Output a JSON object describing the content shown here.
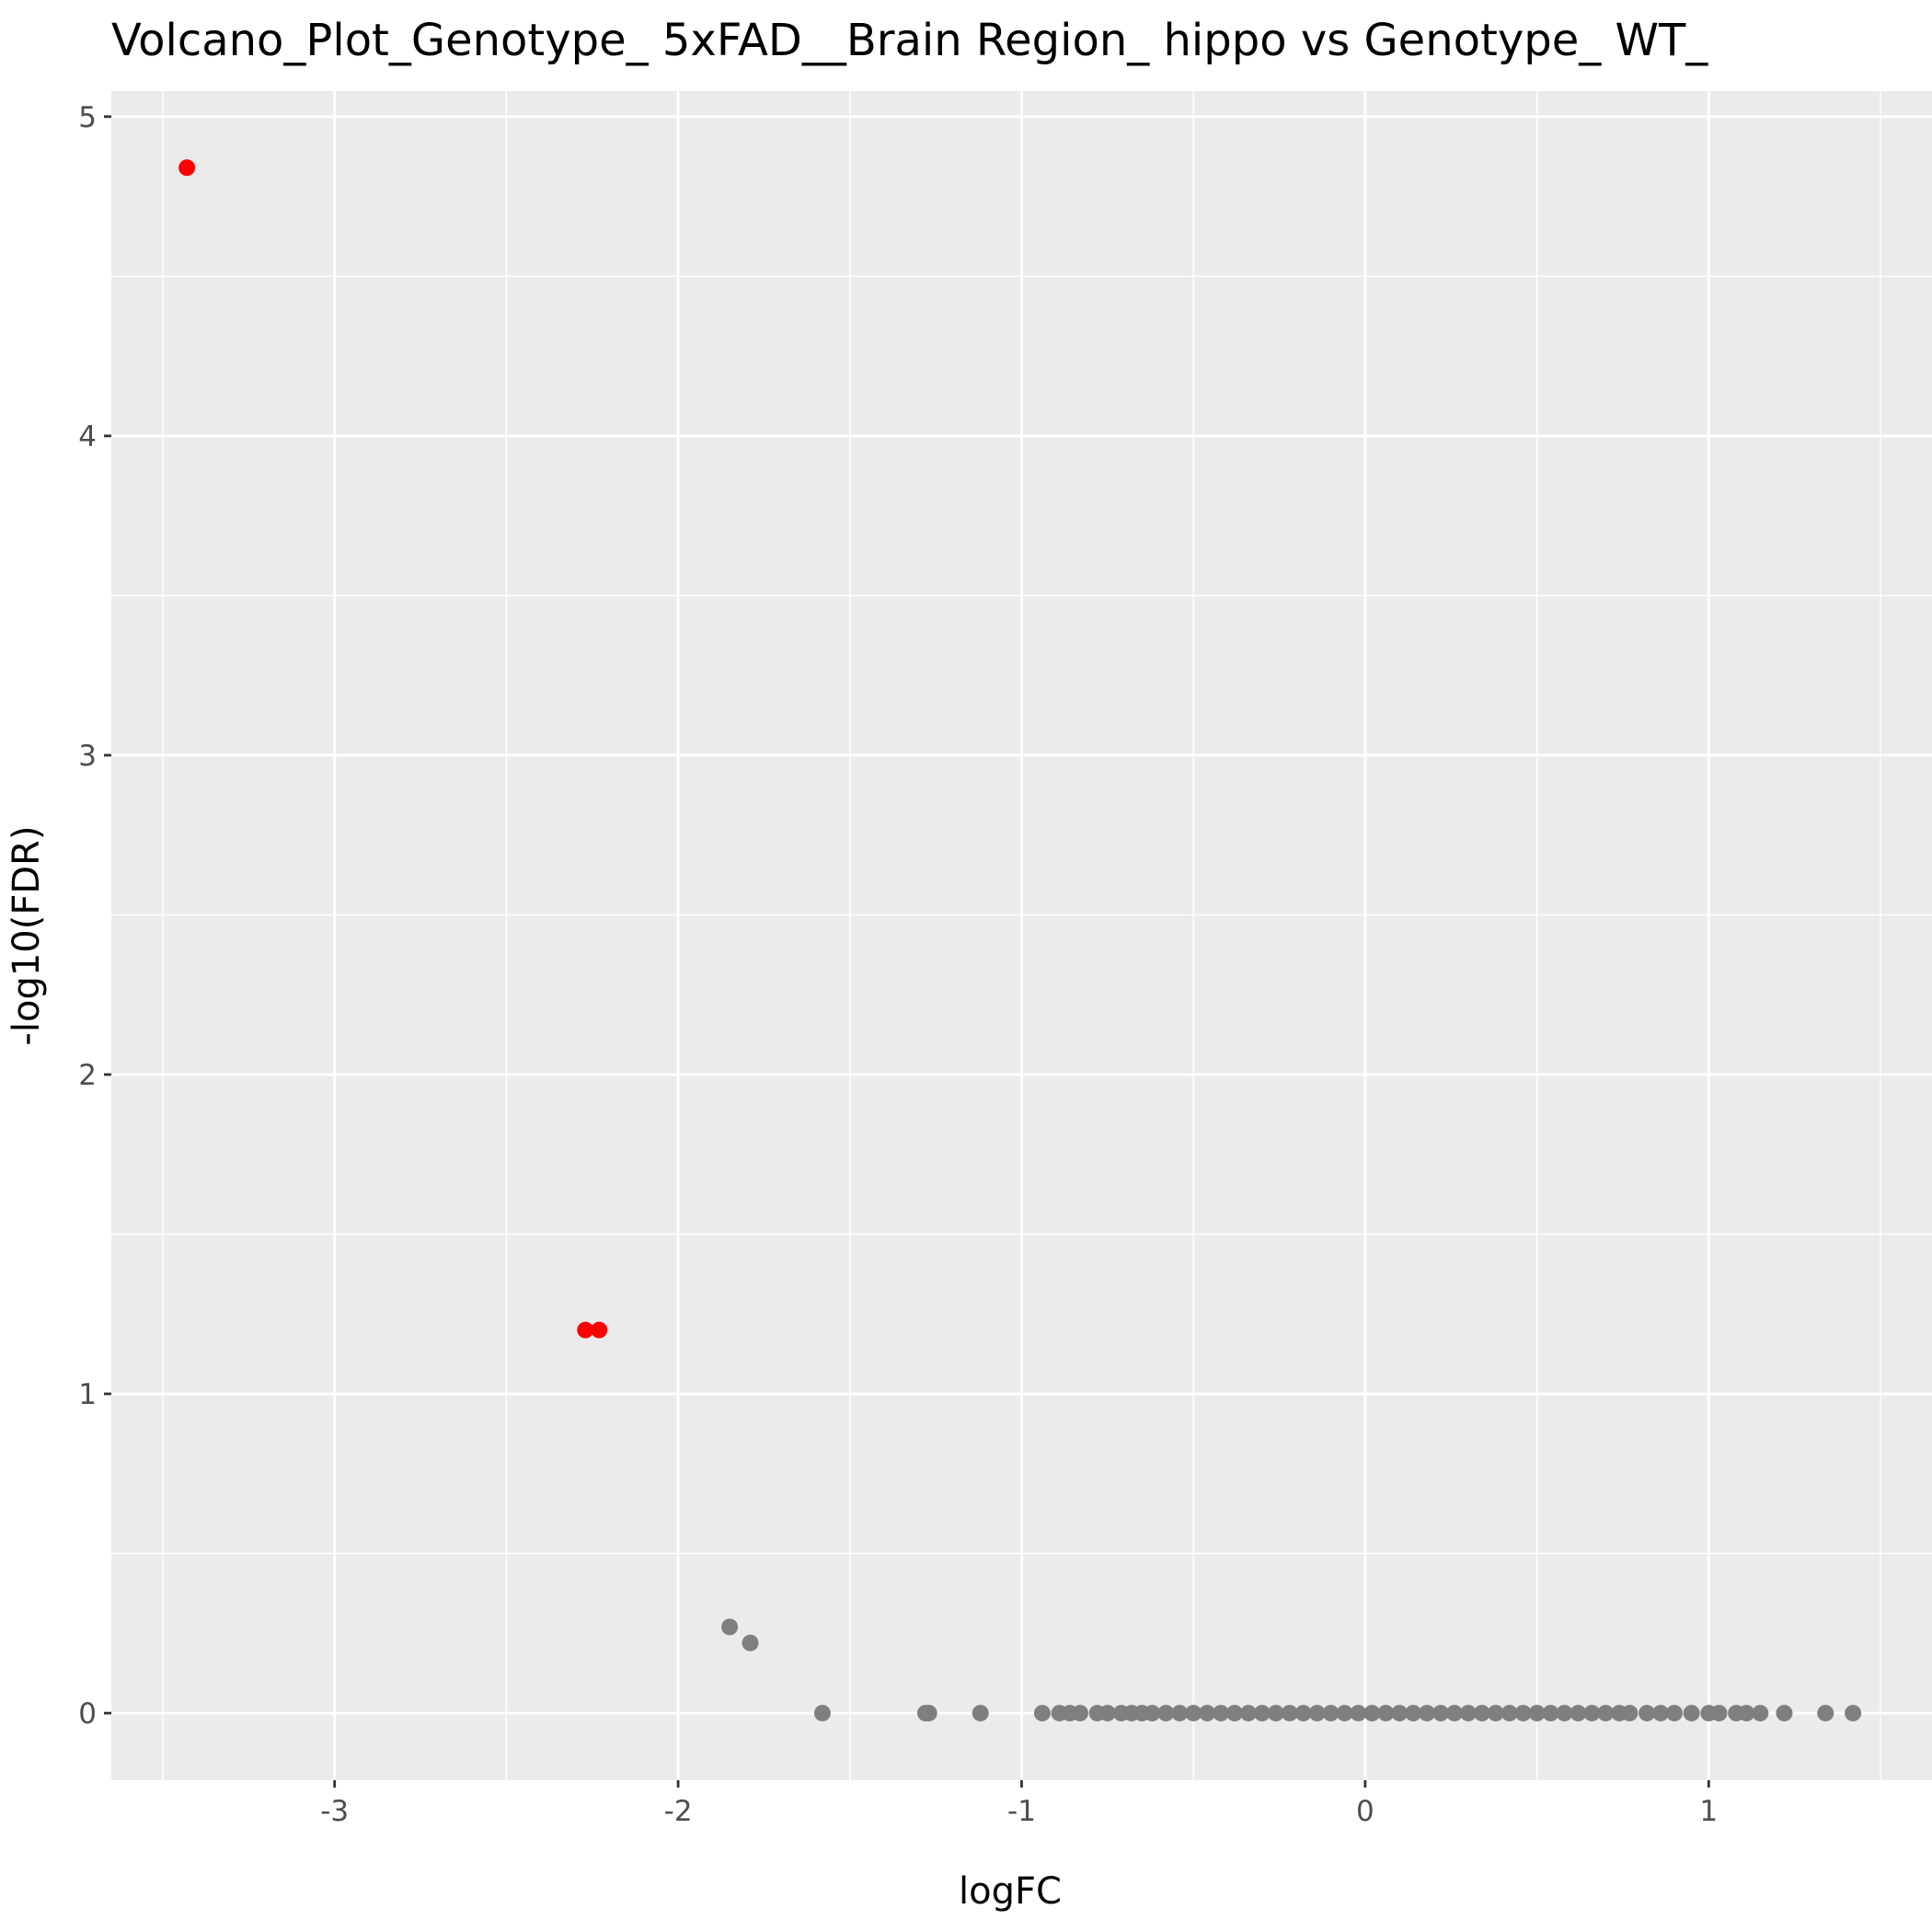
{
  "chart_data": {
    "type": "scatter",
    "title": "Volcano_Plot_Genotype_ 5xFAD__Brain Region_ hippo vs Genotype_ WT_",
    "xlabel": "logFC",
    "ylabel": "-log10(FDR)",
    "xlim": [
      -3.65,
      1.65
    ],
    "ylim": [
      -0.21,
      5.08
    ],
    "x_ticks": [
      -3,
      -2,
      -1,
      0,
      1
    ],
    "x_tick_labels": [
      "-3",
      "-2",
      "-1",
      "0",
      "1"
    ],
    "y_ticks": [
      0,
      1,
      2,
      3,
      4,
      5
    ],
    "y_tick_labels": [
      "0",
      "1",
      "2",
      "3",
      "4",
      "5"
    ],
    "grid": true,
    "legend": "none",
    "series": [
      {
        "color": "#ff0000",
        "points": [
          {
            "x": -3.43,
            "y": 4.84
          },
          {
            "x": -2.27,
            "y": 1.2
          },
          {
            "x": -2.23,
            "y": 1.2
          }
        ]
      },
      {
        "color": "#7f7f7f",
        "points": [
          {
            "x": -1.85,
            "y": 0.27
          },
          {
            "x": -1.79,
            "y": 0.22
          },
          {
            "x": -1.58,
            "y": 0
          },
          {
            "x": -1.28,
            "y": 0
          },
          {
            "x": -1.27,
            "y": 0
          },
          {
            "x": -1.12,
            "y": 0
          },
          {
            "x": -0.94,
            "y": 0
          },
          {
            "x": -0.89,
            "y": 0
          },
          {
            "x": -0.86,
            "y": 0
          },
          {
            "x": -0.83,
            "y": 0
          },
          {
            "x": -0.78,
            "y": 0
          },
          {
            "x": -0.75,
            "y": 0
          },
          {
            "x": -0.71,
            "y": 0
          },
          {
            "x": -0.68,
            "y": 0
          },
          {
            "x": -0.65,
            "y": 0
          },
          {
            "x": -0.62,
            "y": 0
          },
          {
            "x": -0.58,
            "y": 0
          },
          {
            "x": -0.54,
            "y": 0
          },
          {
            "x": -0.5,
            "y": 0
          },
          {
            "x": -0.46,
            "y": 0
          },
          {
            "x": -0.42,
            "y": 0
          },
          {
            "x": -0.38,
            "y": 0
          },
          {
            "x": -0.34,
            "y": 0
          },
          {
            "x": -0.3,
            "y": 0
          },
          {
            "x": -0.26,
            "y": 0
          },
          {
            "x": -0.22,
            "y": 0
          },
          {
            "x": -0.18,
            "y": 0
          },
          {
            "x": -0.14,
            "y": 0
          },
          {
            "x": -0.1,
            "y": 0
          },
          {
            "x": -0.06,
            "y": 0
          },
          {
            "x": -0.02,
            "y": 0
          },
          {
            "x": 0.02,
            "y": 0
          },
          {
            "x": 0.06,
            "y": 0
          },
          {
            "x": 0.1,
            "y": 0
          },
          {
            "x": 0.14,
            "y": 0
          },
          {
            "x": 0.18,
            "y": 0
          },
          {
            "x": 0.22,
            "y": 0
          },
          {
            "x": 0.26,
            "y": 0
          },
          {
            "x": 0.3,
            "y": 0
          },
          {
            "x": 0.34,
            "y": 0
          },
          {
            "x": 0.38,
            "y": 0
          },
          {
            "x": 0.42,
            "y": 0
          },
          {
            "x": 0.46,
            "y": 0
          },
          {
            "x": 0.5,
            "y": 0
          },
          {
            "x": 0.54,
            "y": 0
          },
          {
            "x": 0.58,
            "y": 0
          },
          {
            "x": 0.62,
            "y": 0
          },
          {
            "x": 0.66,
            "y": 0
          },
          {
            "x": 0.7,
            "y": 0
          },
          {
            "x": 0.74,
            "y": 0
          },
          {
            "x": 0.77,
            "y": 0
          },
          {
            "x": 0.82,
            "y": 0
          },
          {
            "x": 0.86,
            "y": 0
          },
          {
            "x": 0.9,
            "y": 0
          },
          {
            "x": 0.95,
            "y": 0
          },
          {
            "x": 1.0,
            "y": 0
          },
          {
            "x": 1.03,
            "y": 0
          },
          {
            "x": 1.08,
            "y": 0
          },
          {
            "x": 1.11,
            "y": 0
          },
          {
            "x": 1.15,
            "y": 0
          },
          {
            "x": 1.22,
            "y": 0
          },
          {
            "x": 1.34,
            "y": 0
          },
          {
            "x": 1.42,
            "y": 0
          }
        ]
      }
    ]
  }
}
